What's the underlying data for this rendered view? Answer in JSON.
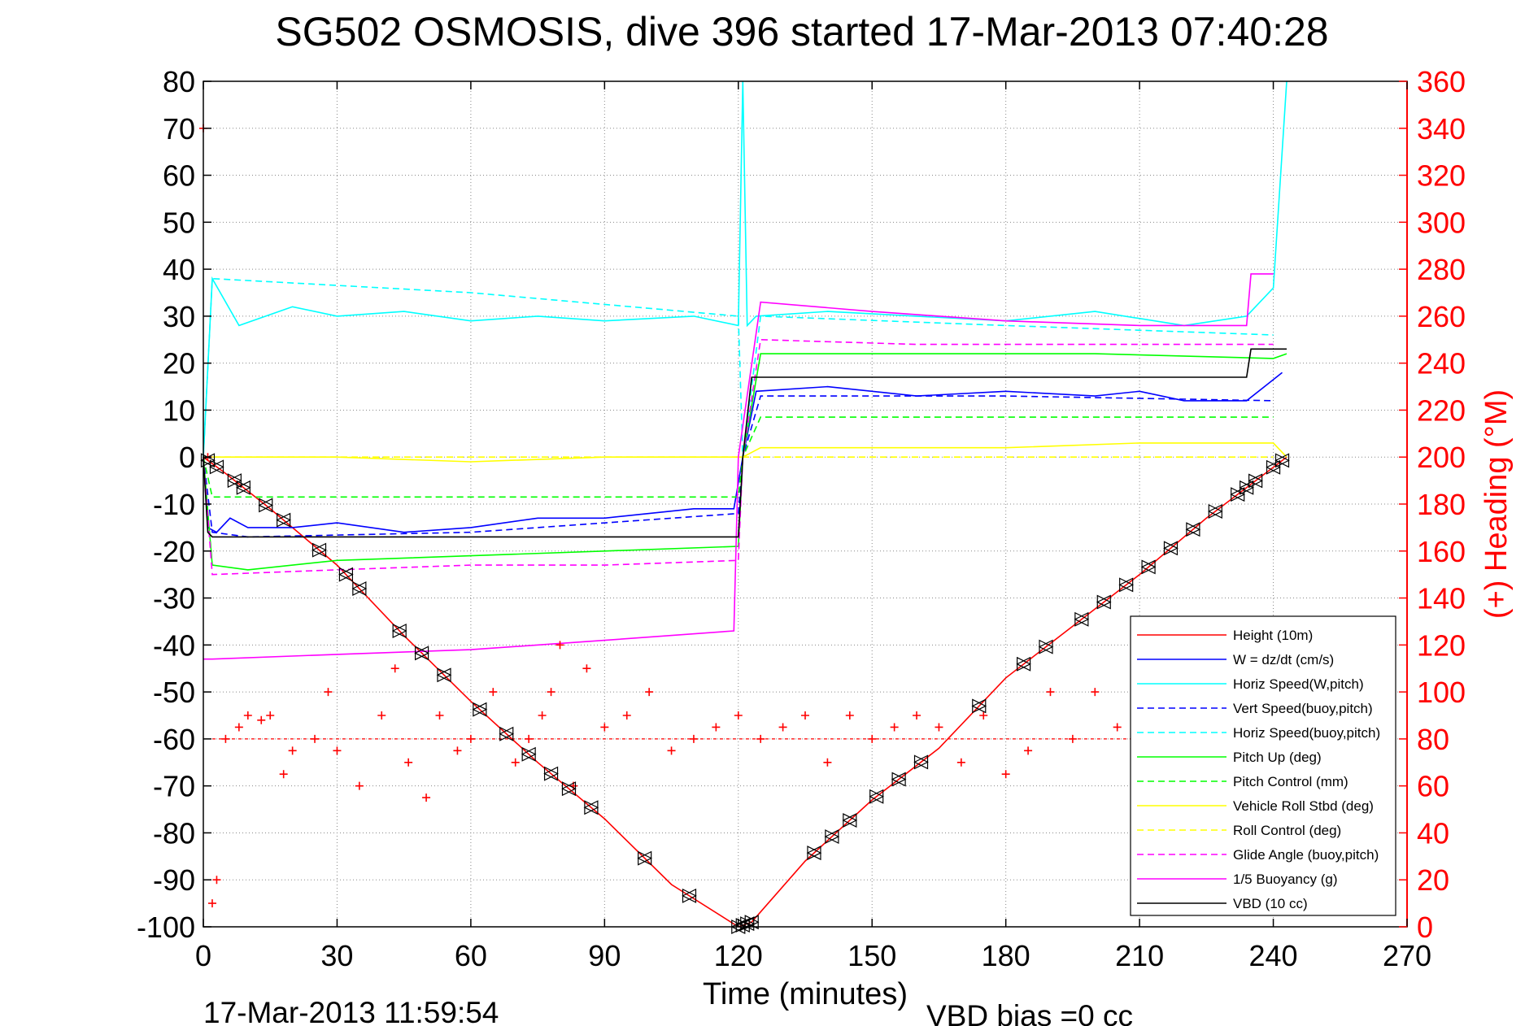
{
  "chart_data": {
    "type": "line",
    "title": "SG502 OSMOSIS, dive 396 started 17-Mar-2013 07:40:28",
    "xlabel": "Time (minutes)",
    "ylabel_right": "(+) Heading (°M)",
    "xlim": [
      0,
      270
    ],
    "ylim": [
      -100,
      80
    ],
    "ylim_right": [
      0,
      360
    ],
    "x_ticks": [
      "0",
      "30",
      "60",
      "90",
      "120",
      "150",
      "180",
      "210",
      "240",
      "270"
    ],
    "y_ticks": [
      "-100",
      "-90",
      "-80",
      "-70",
      "-60",
      "-50",
      "-40",
      "-30",
      "-20",
      "-10",
      "0",
      "10",
      "20",
      "30",
      "40",
      "50",
      "60",
      "70",
      "80"
    ],
    "y_right_ticks": [
      "0",
      "20",
      "40",
      "60",
      "80",
      "100",
      "120",
      "140",
      "160",
      "180",
      "200",
      "220",
      "240",
      "260",
      "280",
      "300",
      "320",
      "340",
      "360"
    ],
    "grid": true,
    "legend_position": "bottom-right",
    "end_time_text": "17-Mar-2013 11:59:54",
    "vbd_bias_text": "VBD bias =0 cc",
    "series": [
      {
        "name": "Height (10m)",
        "color": "#ff0000",
        "style": "solid",
        "x": [
          0,
          5,
          15,
          30,
          45,
          60,
          75,
          90,
          105,
          120,
          123,
          135,
          150,
          165,
          180,
          195,
          210,
          225,
          243
        ],
        "y": [
          0,
          -3.5,
          -11,
          -23,
          -38,
          -52,
          -65,
          -77,
          -91,
          -100,
          -99,
          -86,
          -73,
          -62,
          -47,
          -36,
          -25,
          -13,
          0
        ]
      },
      {
        "name": "W = dz/dt (cm/s)",
        "color": "#0000ff",
        "style": "solid",
        "x": [
          0,
          1,
          3,
          6,
          10,
          20,
          30,
          45,
          60,
          75,
          90,
          110,
          119,
          121,
          124,
          140,
          160,
          180,
          200,
          210,
          220,
          234,
          238,
          242
        ],
        "y": [
          0,
          -15,
          -16,
          -13,
          -15,
          -15,
          -14,
          -16,
          -15,
          -13,
          -13,
          -11,
          -11,
          0,
          14,
          15,
          13,
          14,
          13,
          14,
          12,
          12,
          15,
          18
        ]
      },
      {
        "name": "Horiz Speed(W,pitch)",
        "color": "#00ffff",
        "style": "solid",
        "x": [
          0,
          2,
          8,
          20,
          30,
          45,
          60,
          75,
          90,
          110,
          120,
          121,
          122,
          124,
          140,
          160,
          180,
          200,
          220,
          234,
          240,
          243
        ],
        "y": [
          0,
          38,
          28,
          32,
          30,
          31,
          29,
          30,
          29,
          30,
          28,
          80,
          28,
          30,
          31,
          30,
          29,
          31,
          28,
          30,
          36,
          80
        ]
      },
      {
        "name": "Vert Speed(buoy,pitch)",
        "color": "#0000ff",
        "style": "dashed",
        "x": [
          0,
          2,
          10,
          60,
          120,
          121,
          125,
          180,
          240
        ],
        "y": [
          0,
          -16,
          -17,
          -16,
          -12,
          0,
          13,
          13,
          12
        ]
      },
      {
        "name": "Horiz Speed(buoy,pitch)",
        "color": "#00ffff",
        "style": "dashed",
        "x": [
          0,
          2,
          60,
          120,
          121,
          125,
          180,
          240
        ],
        "y": [
          0,
          38,
          35,
          30,
          0,
          30,
          28,
          26
        ]
      },
      {
        "name": "Pitch Up (deg)",
        "color": "#00ff00",
        "style": "solid",
        "x": [
          0,
          2,
          10,
          30,
          60,
          90,
          120,
          121,
          125,
          160,
          200,
          240,
          243
        ],
        "y": [
          0,
          -23,
          -24,
          -22,
          -21,
          -20,
          -19,
          0,
          22,
          22,
          22,
          21,
          22
        ]
      },
      {
        "name": "Pitch Control (mm)",
        "color": "#00ff00",
        "style": "dashed",
        "x": [
          0,
          2,
          120,
          121,
          125,
          240
        ],
        "y": [
          0,
          -8.5,
          -8.5,
          0,
          8.5,
          8.5
        ]
      },
      {
        "name": "Vehicle Roll Stbd (deg)",
        "color": "#ffff00",
        "style": "solid",
        "x": [
          0,
          5,
          30,
          60,
          90,
          120,
          121,
          125,
          150,
          180,
          210,
          240,
          243
        ],
        "y": [
          0,
          0,
          0,
          -1,
          0,
          0,
          0,
          2,
          2,
          2,
          3,
          3,
          0
        ]
      },
      {
        "name": "Roll Control (deg)",
        "color": "#ffff00",
        "style": "dashed",
        "x": [
          0,
          5,
          60,
          120,
          121,
          240
        ],
        "y": [
          0,
          0,
          0,
          0,
          0,
          0
        ]
      },
      {
        "name": "Glide Angle (buoy,pitch)",
        "color": "#ff00ff",
        "style": "dashed",
        "x": [
          0,
          2,
          30,
          60,
          90,
          120,
          121,
          125,
          160,
          200,
          240
        ],
        "y": [
          0,
          -25,
          -24,
          -23,
          -23,
          -22,
          0,
          25,
          24,
          24,
          24
        ]
      },
      {
        "name": "1/5 Buoyancy (g)",
        "color": "#ff00ff",
        "style": "solid",
        "x": [
          0,
          2,
          30,
          60,
          90,
          119,
          120,
          125,
          150,
          180,
          210,
          234,
          235,
          240
        ],
        "y": [
          -43,
          -43,
          -42,
          -41,
          -39,
          -37,
          0,
          33,
          31,
          29,
          28,
          28,
          39,
          39
        ]
      },
      {
        "name": "VBD (10 cc)",
        "color": "#000000",
        "style": "solid",
        "x": [
          0,
          1,
          2,
          120,
          121,
          123,
          234,
          235,
          243
        ],
        "y": [
          0,
          -16,
          -17,
          -17,
          0,
          17,
          17,
          23,
          23
        ]
      }
    ],
    "heading_series": {
      "name": "Heading (°M)",
      "color": "#ff0000",
      "marker": "+",
      "axis": "right",
      "mean": 80,
      "x": [
        0,
        1,
        2,
        3,
        5,
        8,
        10,
        13,
        15,
        18,
        20,
        25,
        28,
        30,
        35,
        40,
        43,
        46,
        50,
        53,
        57,
        60,
        65,
        70,
        73,
        76,
        78,
        80,
        83,
        86,
        90,
        95,
        100,
        105,
        110,
        115,
        120,
        125,
        130,
        135,
        140,
        145,
        150,
        155,
        160,
        165,
        170,
        175,
        180,
        185,
        190,
        195,
        200,
        205,
        210,
        215,
        220,
        225,
        230,
        235,
        242
      ],
      "y": [
        340,
        200,
        10,
        20,
        80,
        85,
        90,
        88,
        90,
        65,
        75,
        80,
        100,
        75,
        60,
        90,
        110,
        70,
        55,
        90,
        75,
        80,
        100,
        70,
        80,
        90,
        100,
        120,
        60,
        110,
        85,
        90,
        100,
        75,
        80,
        85,
        90,
        80,
        85,
        90,
        70,
        90,
        80,
        85,
        90,
        85,
        70,
        90,
        65,
        75,
        100,
        80,
        100,
        85,
        70,
        90,
        65,
        80,
        85,
        75,
        80
      ]
    },
    "depth_markers": {
      "marker": "triangle-pair",
      "color": "#000000",
      "x": [
        1,
        3,
        7,
        9,
        14,
        18,
        26,
        32,
        35,
        44,
        49,
        54,
        62,
        68,
        73,
        78,
        82,
        87,
        99,
        109,
        120,
        121,
        122,
        123,
        137,
        141,
        145,
        151,
        156,
        161,
        174,
        184,
        189,
        197,
        202,
        207,
        212,
        217,
        222,
        227,
        232,
        234,
        236,
        240,
        242
      ]
    }
  }
}
